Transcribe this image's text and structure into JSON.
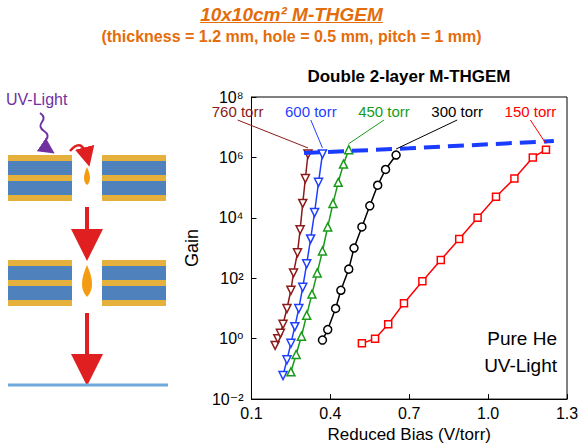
{
  "header": {
    "title": "10x10cm² M-THGEM",
    "subtitle": "(thickness = 1.2 mm, hole = 0.5 mm, pitch = 1 mm)"
  },
  "diagram": {
    "label": "UV-Light"
  },
  "chart_data": {
    "type": "line",
    "title": "Double 2-layer M-THGEM",
    "x_label": "Reduced Bias (V/torr)",
    "y_label": "Gain",
    "log": "y",
    "grid": false,
    "xlim": [
      0.1,
      1.3
    ],
    "xticks": [
      0.1,
      0.4,
      0.7,
      {
        "value": 1,
        "label": "1.0"
      },
      1.3
    ],
    "ylim": [
      0.01,
      100000000
    ],
    "yticks": [
      {
        "value": 0.01,
        "label": "10⁻²"
      },
      {
        "value": 1,
        "label": "10⁰"
      },
      {
        "value": 100,
        "label": "10²"
      },
      {
        "value": 10000,
        "label": "10⁴"
      },
      {
        "value": 1000000,
        "label": "10⁶"
      },
      {
        "value": 100000000,
        "label": "10⁸"
      }
    ],
    "annotations": [
      "Pure He",
      "UV-Light"
    ],
    "series": [
      {
        "name": "760 torr",
        "color": "#8b1a1a",
        "marker": "triangle-down",
        "line_style": "solid",
        "x": [
          0.19,
          0.2,
          0.21,
          0.22,
          0.235,
          0.25,
          0.26,
          0.275,
          0.285,
          0.295,
          0.305,
          0.315
        ],
        "values": [
          0.6,
          1,
          1.5,
          3,
          10,
          40,
          150,
          700,
          4000,
          30000,
          200000,
          1300000
        ]
      },
      {
        "name": "600 torr",
        "color": "#1f3fff",
        "marker": "triangle-down",
        "line_style": "solid",
        "x": [
          0.22,
          0.235,
          0.25,
          0.265,
          0.28,
          0.295,
          0.31,
          0.325,
          0.34,
          0.355,
          0.37
        ],
        "values": [
          0.06,
          0.2,
          0.7,
          2.5,
          10,
          50,
          300,
          2000,
          15000,
          150000,
          1300000
        ]
      },
      {
        "name": "450 torr",
        "color": "#1a9a1a",
        "marker": "triangle",
        "line_style": "solid",
        "x": [
          0.25,
          0.27,
          0.29,
          0.31,
          0.33,
          0.35,
          0.37,
          0.39,
          0.41,
          0.43,
          0.45,
          0.47
        ],
        "values": [
          0.08,
          0.3,
          1.2,
          6,
          30,
          150,
          800,
          5000,
          30000,
          150000,
          600000,
          1800000
        ]
      },
      {
        "name": "300 torr",
        "color": "#000000",
        "marker": "circle",
        "line_style": "solid",
        "x": [
          0.37,
          0.39,
          0.42,
          0.44,
          0.47,
          0.49,
          0.52,
          0.55,
          0.58,
          0.61,
          0.65
        ],
        "values": [
          0.9,
          2,
          10,
          40,
          200,
          1000,
          5000,
          25000,
          120000,
          400000,
          1200000
        ]
      },
      {
        "name": "150 torr",
        "color": "#ff0000",
        "marker": "square",
        "line_style": "solid",
        "x": [
          0.52,
          0.57,
          0.62,
          0.68,
          0.75,
          0.82,
          0.89,
          0.96,
          1.03,
          1.1,
          1.17,
          1.22
        ],
        "values": [
          0.7,
          1,
          3,
          15,
          80,
          400,
          2000,
          10000,
          50000,
          200000,
          1000000,
          1800000
        ]
      },
      {
        "color": "#1a3cff",
        "marker": "none",
        "line_style": "dashed",
        "x": [
          0.3,
          0.7,
          1.25
        ],
        "values": [
          1400000,
          2000000,
          3500000
        ]
      }
    ]
  }
}
